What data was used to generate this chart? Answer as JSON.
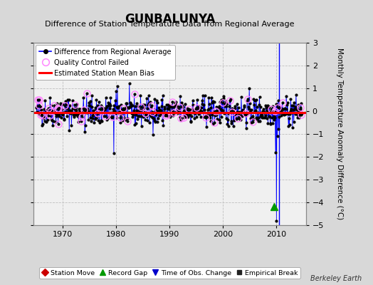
{
  "title": "GUNBALUNYA",
  "subtitle": "Difference of Station Temperature Data from Regional Average",
  "ylabel": "Monthly Temperature Anomaly Difference (°C)",
  "xlim": [
    1964.5,
    2015.5
  ],
  "ylim": [
    -5,
    3
  ],
  "yticks": [
    -5,
    -4,
    -3,
    -2,
    -1,
    0,
    1,
    2,
    3
  ],
  "xticks": [
    1970,
    1980,
    1990,
    2000,
    2010
  ],
  "bias_value": -0.05,
  "vertical_line_x": 2010.5,
  "record_gap_x": 2009.5,
  "record_gap_y": -4.2,
  "fig_bg_color": "#d8d8d8",
  "plot_bg_color": "#f0f0f0",
  "line_color": "#0000ff",
  "dot_color": "#000000",
  "bias_color": "#ff0000",
  "qc_color": "#ff88ff",
  "watermark": "Berkeley Earth",
  "seed": 42,
  "n_months": 597,
  "start_year": 1965.0,
  "end_year": 2014.75
}
